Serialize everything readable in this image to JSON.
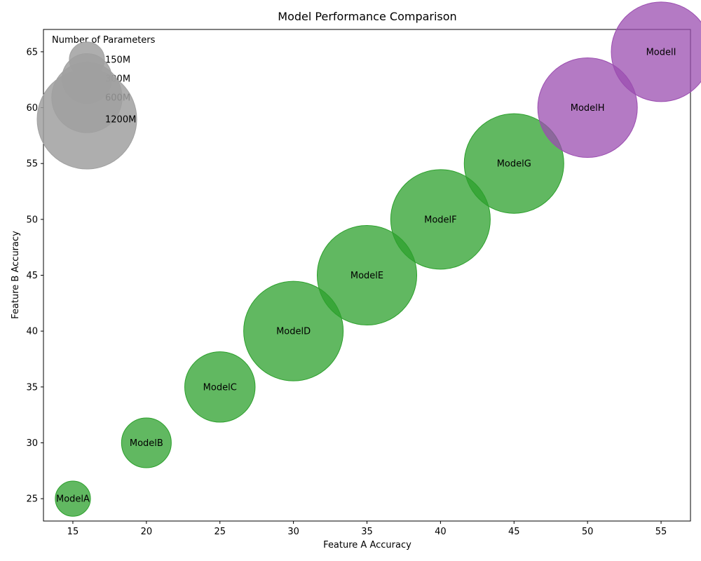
{
  "chart_data": {
    "type": "scatter",
    "title": "Model Performance Comparison",
    "xlabel": "Feature A Accuracy",
    "ylabel": "Feature B Accuracy",
    "xlim": [
      13,
      57
    ],
    "ylim": [
      23,
      67
    ],
    "x_ticks": [
      15,
      20,
      25,
      30,
      35,
      40,
      45,
      50,
      55
    ],
    "y_ticks": [
      25,
      30,
      35,
      40,
      45,
      50,
      55,
      60,
      65
    ],
    "grid": false,
    "points": [
      {
        "label": "ModelA",
        "x": 15,
        "y": 25,
        "params_m": 150,
        "color": "#2ca02c"
      },
      {
        "label": "ModelB",
        "x": 20,
        "y": 30,
        "params_m": 300,
        "color": "#2ca02c"
      },
      {
        "label": "ModelC",
        "x": 25,
        "y": 35,
        "params_m": 600,
        "color": "#2ca02c"
      },
      {
        "label": "ModelD",
        "x": 30,
        "y": 40,
        "params_m": 1200,
        "color": "#2ca02c"
      },
      {
        "label": "ModelE",
        "x": 35,
        "y": 45,
        "params_m": 1200,
        "color": "#2ca02c"
      },
      {
        "label": "ModelF",
        "x": 40,
        "y": 50,
        "params_m": 1200,
        "color": "#2ca02c"
      },
      {
        "label": "ModelG",
        "x": 45,
        "y": 55,
        "params_m": 1200,
        "color": "#2ca02c"
      },
      {
        "label": "ModelH",
        "x": 50,
        "y": 60,
        "params_m": 1200,
        "color": "#9b4db0"
      },
      {
        "label": "ModelI",
        "x": 55,
        "y": 65,
        "params_m": 1200,
        "color": "#9b4db0"
      }
    ],
    "legend": {
      "title": "Number of Parameters",
      "placement": "top-left",
      "color": "#a0a0a0",
      "entries": [
        {
          "label": "150M",
          "params_m": 150
        },
        {
          "label": "300M",
          "params_m": 300
        },
        {
          "label": "600M",
          "params_m": 600
        },
        {
          "label": "1200M",
          "params_m": 1200
        }
      ]
    }
  }
}
